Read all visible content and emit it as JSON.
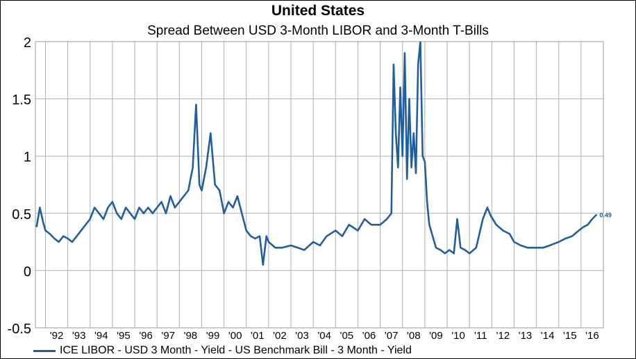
{
  "chart_data": {
    "type": "line",
    "title": "United States",
    "subtitle": "Spread Between USD 3-Month LIBOR and 3-Month T-Bills",
    "xlabel": "",
    "ylabel": "",
    "ylim": [
      -0.5,
      2
    ],
    "yticks": [
      "2",
      "1.5",
      "1",
      "0.5",
      "0",
      "-0.5"
    ],
    "xlim": [
      1991.55,
      2017.0
    ],
    "xticks": [
      "'92",
      "'93",
      "'94",
      "'95",
      "'96",
      "'97",
      "'98",
      "'99",
      "'00",
      "'01",
      "'02",
      "'03",
      "'04",
      "'05",
      "'06",
      "'07",
      "'08",
      "'09",
      "'10",
      "'11",
      "'12",
      "'13",
      "'14",
      "'15",
      "'16"
    ],
    "grid": true,
    "legend_position": "bottom",
    "last_value_label": "0.49",
    "line_color": "#1f5f9f",
    "series": [
      {
        "name": "ICE LIBOR - USD 3 Month - Yield - US Benchmark Bill - 3 Month - Yield",
        "x": [
          1991.6,
          1991.75,
          1991.9,
          1992.0,
          1992.2,
          1992.4,
          1992.6,
          1992.8,
          1993.0,
          1993.2,
          1993.4,
          1993.6,
          1993.8,
          1994.0,
          1994.2,
          1994.4,
          1994.6,
          1994.8,
          1995.0,
          1995.2,
          1995.4,
          1995.6,
          1995.8,
          1996.0,
          1996.2,
          1996.4,
          1996.6,
          1996.8,
          1997.0,
          1997.2,
          1997.4,
          1997.6,
          1997.8,
          1998.0,
          1998.2,
          1998.4,
          1998.6,
          1998.75,
          1998.9,
          1999.0,
          1999.2,
          1999.4,
          1999.6,
          1999.8,
          2000.0,
          2000.2,
          2000.4,
          2000.6,
          2000.8,
          2001.0,
          2001.2,
          2001.4,
          2001.6,
          2001.75,
          2001.9,
          2002.0,
          2002.3,
          2002.6,
          2003.0,
          2003.3,
          2003.6,
          2004.0,
          2004.3,
          2004.6,
          2005.0,
          2005.3,
          2005.6,
          2006.0,
          2006.3,
          2006.6,
          2007.0,
          2007.3,
          2007.5,
          2007.6,
          2007.7,
          2007.8,
          2007.9,
          2008.0,
          2008.1,
          2008.2,
          2008.3,
          2008.4,
          2008.5,
          2008.6,
          2008.7,
          2008.8,
          2008.9,
          2009.0,
          2009.1,
          2009.2,
          2009.35,
          2009.5,
          2009.7,
          2009.9,
          2010.1,
          2010.3,
          2010.45,
          2010.6,
          2010.8,
          2011.0,
          2011.3,
          2011.6,
          2011.8,
          2011.95,
          2012.2,
          2012.5,
          2012.8,
          2013.0,
          2013.3,
          2013.6,
          2014.0,
          2014.3,
          2014.6,
          2015.0,
          2015.3,
          2015.6,
          2015.9,
          2016.1,
          2016.3,
          2016.5,
          2016.7
        ],
        "values": [
          0.38,
          0.55,
          0.42,
          0.35,
          0.32,
          0.28,
          0.25,
          0.3,
          0.28,
          0.25,
          0.3,
          0.35,
          0.4,
          0.45,
          0.55,
          0.5,
          0.45,
          0.55,
          0.6,
          0.5,
          0.45,
          0.55,
          0.5,
          0.45,
          0.55,
          0.5,
          0.55,
          0.5,
          0.55,
          0.6,
          0.5,
          0.65,
          0.55,
          0.6,
          0.65,
          0.7,
          0.9,
          1.45,
          0.75,
          0.7,
          0.9,
          1.2,
          0.75,
          0.7,
          0.5,
          0.6,
          0.55,
          0.65,
          0.5,
          0.35,
          0.3,
          0.28,
          0.3,
          0.05,
          0.3,
          0.25,
          0.2,
          0.2,
          0.22,
          0.2,
          0.18,
          0.25,
          0.22,
          0.3,
          0.35,
          0.3,
          0.4,
          0.35,
          0.45,
          0.4,
          0.4,
          0.45,
          0.5,
          1.8,
          1.2,
          0.9,
          1.6,
          1.0,
          1.9,
          0.8,
          1.5,
          0.9,
          1.2,
          0.85,
          1.8,
          2.0,
          1.0,
          0.95,
          0.6,
          0.4,
          0.3,
          0.2,
          0.18,
          0.15,
          0.18,
          0.15,
          0.45,
          0.2,
          0.18,
          0.15,
          0.2,
          0.45,
          0.55,
          0.48,
          0.4,
          0.35,
          0.32,
          0.25,
          0.22,
          0.2,
          0.2,
          0.2,
          0.22,
          0.25,
          0.28,
          0.3,
          0.35,
          0.38,
          0.4,
          0.45,
          0.49
        ]
      }
    ]
  }
}
